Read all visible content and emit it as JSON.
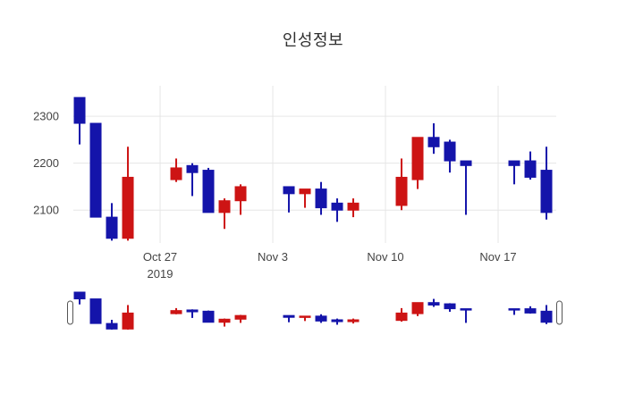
{
  "chart_data": {
    "type": "candlestick",
    "title": "인성정보",
    "xlabel": "",
    "ylabel": "",
    "y_ticks": [
      2100,
      2200,
      2300
    ],
    "x_ticks": [
      {
        "day": 5,
        "label": "Oct 27",
        "sublabel": "2019"
      },
      {
        "day": 12,
        "label": "Nov 3",
        "sublabel": ""
      },
      {
        "day": 19,
        "label": "Nov 10",
        "sublabel": ""
      },
      {
        "day": 26,
        "label": "Nov 17",
        "sublabel": ""
      }
    ],
    "ylim_main": [
      2030,
      2365
    ],
    "ylim_slider": [
      2035,
      2340
    ],
    "xlim_days": [
      -0.39,
      29.61
    ],
    "grid": true,
    "rangeslider": true,
    "candles": [
      {
        "date": "Oct 22",
        "day": 0,
        "open": 2340,
        "high": 2340,
        "low": 2240,
        "close": 2285
      },
      {
        "date": "Oct 23",
        "day": 1,
        "open": 2285,
        "high": 2285,
        "low": 2085,
        "close": 2085
      },
      {
        "date": "Oct 24",
        "day": 2,
        "open": 2085,
        "high": 2115,
        "low": 2035,
        "close": 2040
      },
      {
        "date": "Oct 25",
        "day": 3,
        "open": 2040,
        "high": 2235,
        "low": 2035,
        "close": 2170
      },
      {
        "date": "Oct 28",
        "day": 6,
        "open": 2165,
        "high": 2210,
        "low": 2160,
        "close": 2190
      },
      {
        "date": "Oct 29",
        "day": 7,
        "open": 2195,
        "high": 2200,
        "low": 2130,
        "close": 2180
      },
      {
        "date": "Oct 30",
        "day": 8,
        "open": 2185,
        "high": 2190,
        "low": 2095,
        "close": 2095
      },
      {
        "date": "Oct 31",
        "day": 9,
        "open": 2095,
        "high": 2125,
        "low": 2060,
        "close": 2120
      },
      {
        "date": "Nov 1",
        "day": 10,
        "open": 2120,
        "high": 2155,
        "low": 2090,
        "close": 2150
      },
      {
        "date": "Nov 4",
        "day": 13,
        "open": 2150,
        "high": 2150,
        "low": 2095,
        "close": 2135
      },
      {
        "date": "Nov 5",
        "day": 14,
        "open": 2135,
        "high": 2145,
        "low": 2105,
        "close": 2145
      },
      {
        "date": "Nov 6",
        "day": 15,
        "open": 2145,
        "high": 2160,
        "low": 2090,
        "close": 2105
      },
      {
        "date": "Nov 7",
        "day": 16,
        "open": 2115,
        "high": 2125,
        "low": 2075,
        "close": 2100
      },
      {
        "date": "Nov 8",
        "day": 17,
        "open": 2100,
        "high": 2125,
        "low": 2085,
        "close": 2115
      },
      {
        "date": "Nov 11",
        "day": 20,
        "open": 2110,
        "high": 2210,
        "low": 2100,
        "close": 2170
      },
      {
        "date": "Nov 12",
        "day": 21,
        "open": 2165,
        "high": 2255,
        "low": 2145,
        "close": 2255
      },
      {
        "date": "Nov 13",
        "day": 22,
        "open": 2255,
        "high": 2285,
        "low": 2220,
        "close": 2235
      },
      {
        "date": "Nov 14",
        "day": 23,
        "open": 2245,
        "high": 2250,
        "low": 2180,
        "close": 2205
      },
      {
        "date": "Nov 15",
        "day": 24,
        "open": 2205,
        "high": 2205,
        "low": 2090,
        "close": 2195
      },
      {
        "date": "Nov 18",
        "day": 27,
        "open": 2205,
        "high": 2205,
        "low": 2155,
        "close": 2195
      },
      {
        "date": "Nov 19",
        "day": 28,
        "open": 2205,
        "high": 2225,
        "low": 2165,
        "close": 2170
      },
      {
        "date": "Nov 20",
        "day": 29,
        "open": 2185,
        "high": 2235,
        "low": 2080,
        "close": 2095
      }
    ],
    "colors": {
      "increasing": "#cd1414",
      "decreasing": "#1414aa",
      "grid": "#e6e6e6",
      "tick_text": "#444444",
      "title_text": "#2e2e2e",
      "handle_fill": "#ffffff",
      "handle_border": "#555555",
      "background": "#ffffff"
    }
  }
}
